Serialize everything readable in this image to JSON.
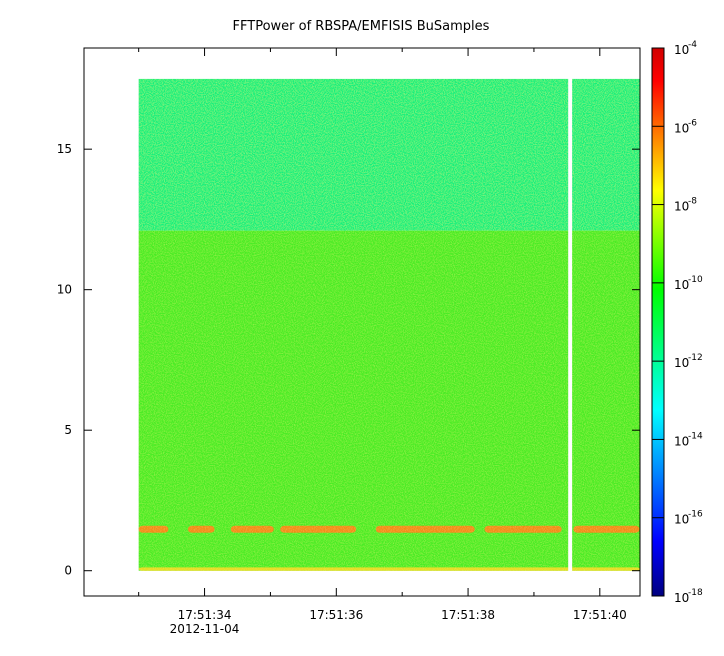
{
  "chart_data": {
    "type": "heatmap",
    "title": "FFTPower of RBSPA/EMFISIS  BuSamples",
    "xlabel": "",
    "ylabel": "",
    "x_axis": {
      "ticks": [
        {
          "time": "17:51:34",
          "sub": "2012-11-04"
        },
        {
          "time": "17:51:36",
          "sub": ""
        },
        {
          "time": "17:51:38",
          "sub": ""
        },
        {
          "time": "17:51:40",
          "sub": ""
        }
      ],
      "range_seconds_after_17_51_30": [
        2.17,
        10.61
      ],
      "minor_tick_step_seconds": 1
    },
    "y_axis": {
      "ticks": [
        0,
        5,
        10,
        15
      ],
      "ylim": [
        -0.9,
        18.6
      ]
    },
    "colorbar": {
      "scale": "log",
      "range": [
        "1e-18",
        "1e-4"
      ],
      "labels": [
        {
          "base": "10",
          "exp": "-4"
        },
        {
          "base": "10",
          "exp": "-6"
        },
        {
          "base": "10",
          "exp": "-8"
        },
        {
          "base": "10",
          "exp": "-10"
        },
        {
          "base": "10",
          "exp": "-12"
        },
        {
          "base": "10",
          "exp": "-14"
        },
        {
          "base": "10",
          "exp": "-16"
        },
        {
          "base": "10",
          "exp": "-18"
        }
      ],
      "colors": [
        "#00007f",
        "#0000ff",
        "#0080ff",
        "#00ffff",
        "#00ff80",
        "#00ff00",
        "#80ff00",
        "#ffff00",
        "#ff8000",
        "#ff0000",
        "#d00000"
      ]
    },
    "data_extent": {
      "t_start_s": 3.0,
      "t_end_s": 10.61,
      "freq_min": 0.0,
      "freq_max": 17.5
    },
    "gap": {
      "t_start_s": 9.52,
      "t_end_s": 9.58
    },
    "regions": [
      {
        "f_min": 12.1,
        "f_max": 17.5,
        "level": "1e-12",
        "color": "#12f07c"
      },
      {
        "f_min": 0.0,
        "f_max": 12.1,
        "level": "1e-10",
        "color": "#48ec28"
      }
    ],
    "bands": [
      {
        "f_min": 1.35,
        "f_max": 1.6,
        "level": "1e-8",
        "color": "#f28a18",
        "segments": [
          [
            3.0,
            3.45
          ],
          [
            3.75,
            4.15
          ],
          [
            4.4,
            5.05
          ],
          [
            5.15,
            6.3
          ],
          [
            6.6,
            8.1
          ],
          [
            8.25,
            9.42
          ],
          [
            9.6,
            10.6
          ]
        ]
      },
      {
        "f_min": 0.0,
        "f_max": 0.12,
        "level": "1e-9",
        "color": "#e6dc22",
        "segments": [
          [
            3.0,
            10.61
          ]
        ]
      }
    ]
  }
}
